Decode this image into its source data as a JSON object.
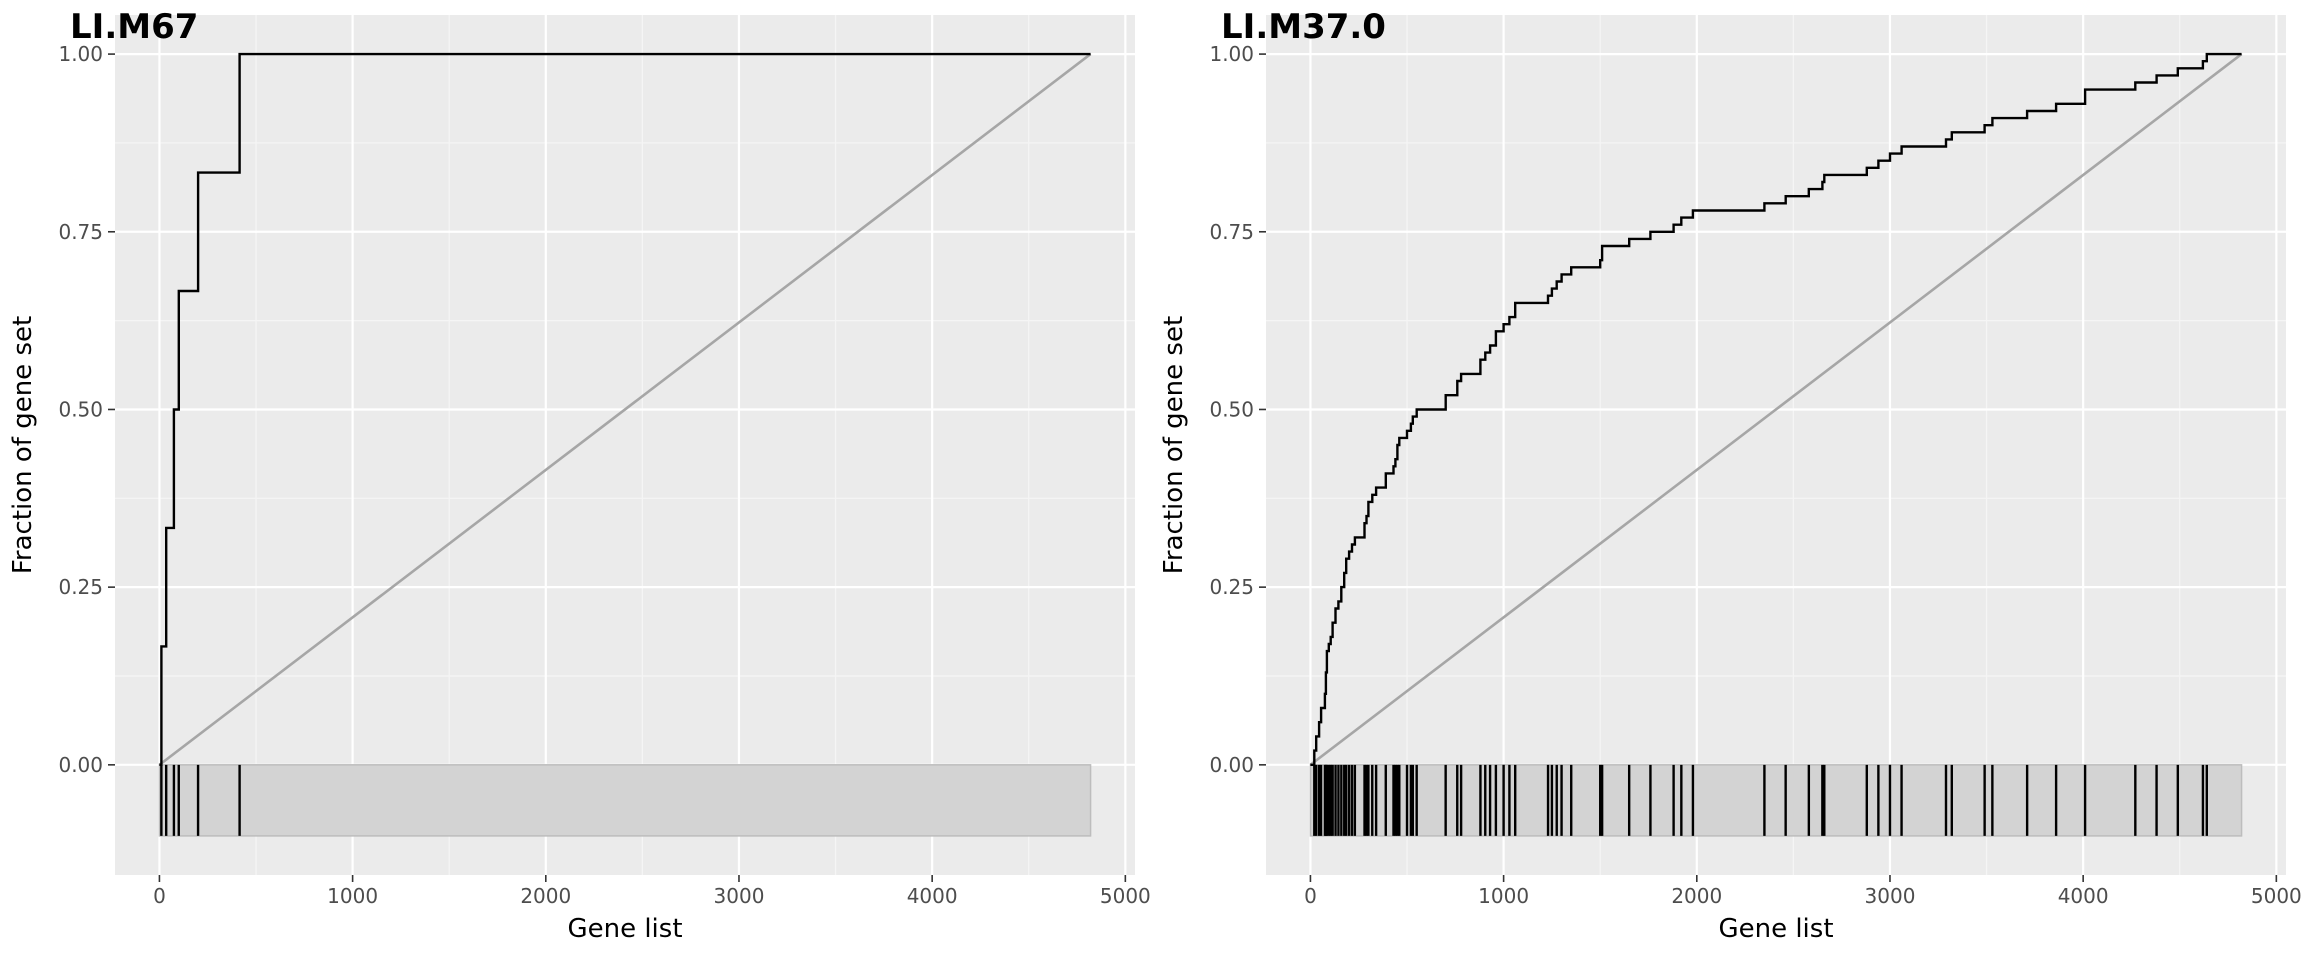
{
  "chart_data": [
    {
      "type": "line",
      "title": "LI.M67",
      "xlabel": "Gene list",
      "ylabel": "Fraction of gene set",
      "xlim": [
        -230,
        5050
      ],
      "ylim": [
        -0.155,
        1.055
      ],
      "x_ticks": [
        0,
        1000,
        2000,
        3000,
        4000,
        5000
      ],
      "x_tick_labels": [
        "0",
        "1000",
        "2000",
        "3000",
        "4000",
        "5000"
      ],
      "y_ticks": [
        0,
        0.25,
        0.5,
        0.75,
        1.0
      ],
      "y_tick_labels": [
        "0.00",
        "0.25",
        "0.50",
        "0.75",
        "1.00"
      ],
      "grid": true,
      "series": [
        {
          "values": [
            [
              0,
              0
            ],
            [
              10,
              0.1667
            ],
            [
              35,
              0.3333
            ],
            [
              75,
              0.5
            ],
            [
              100,
              0.6667
            ],
            [
              200,
              0.8333
            ],
            [
              415,
              1.0
            ],
            [
              4820,
              1.0
            ]
          ]
        },
        {
          "values": [
            [
              0,
              0
            ],
            [
              4820,
              1.0
            ]
          ]
        }
      ],
      "barcode": {
        "positions": [
          10,
          35,
          75,
          100,
          200,
          415
        ],
        "range": [
          0,
          4820
        ],
        "band": [
          -0.1,
          0
        ]
      }
    },
    {
      "type": "line",
      "title": "LI.M37.0",
      "xlabel": "Gene list",
      "ylabel": "Fraction of gene set",
      "xlim": [
        -230,
        5050
      ],
      "ylim": [
        -0.155,
        1.055
      ],
      "x_ticks": [
        0,
        1000,
        2000,
        3000,
        4000,
        5000
      ],
      "x_tick_labels": [
        "0",
        "1000",
        "2000",
        "3000",
        "4000",
        "5000"
      ],
      "y_ticks": [
        0,
        0.25,
        0.5,
        0.75,
        1.0
      ],
      "y_tick_labels": [
        "0.00",
        "0.25",
        "0.50",
        "0.75",
        "1.00"
      ],
      "grid": true,
      "series": [
        {
          "values": [
            [
              0,
              0
            ],
            [
              20,
              0.02
            ],
            [
              30,
              0.04
            ],
            [
              45,
              0.06
            ],
            [
              55,
              0.08
            ],
            [
              75,
              0.1
            ],
            [
              80,
              0.13
            ],
            [
              85,
              0.16
            ],
            [
              95,
              0.17
            ],
            [
              105,
              0.18
            ],
            [
              115,
              0.2
            ],
            [
              130,
              0.22
            ],
            [
              145,
              0.23
            ],
            [
              160,
              0.25
            ],
            [
              175,
              0.27
            ],
            [
              185,
              0.29
            ],
            [
              200,
              0.3
            ],
            [
              215,
              0.31
            ],
            [
              230,
              0.32
            ],
            [
              280,
              0.34
            ],
            [
              290,
              0.35
            ],
            [
              300,
              0.37
            ],
            [
              320,
              0.38
            ],
            [
              340,
              0.39
            ],
            [
              390,
              0.41
            ],
            [
              430,
              0.42
            ],
            [
              440,
              0.43
            ],
            [
              450,
              0.45
            ],
            [
              460,
              0.46
            ],
            [
              500,
              0.47
            ],
            [
              520,
              0.48
            ],
            [
              530,
              0.49
            ],
            [
              550,
              0.5
            ],
            [
              700,
              0.52
            ],
            [
              760,
              0.54
            ],
            [
              780,
              0.55
            ],
            [
              880,
              0.57
            ],
            [
              905,
              0.58
            ],
            [
              930,
              0.59
            ],
            [
              960,
              0.61
            ],
            [
              1000,
              0.62
            ],
            [
              1030,
              0.63
            ],
            [
              1060,
              0.65
            ],
            [
              1230,
              0.66
            ],
            [
              1250,
              0.67
            ],
            [
              1275,
              0.68
            ],
            [
              1300,
              0.69
            ],
            [
              1350,
              0.7
            ],
            [
              1500,
              0.71
            ],
            [
              1510,
              0.73
            ],
            [
              1650,
              0.74
            ],
            [
              1760,
              0.75
            ],
            [
              1880,
              0.76
            ],
            [
              1920,
              0.77
            ],
            [
              1980,
              0.78
            ],
            [
              2350,
              0.79
            ],
            [
              2460,
              0.8
            ],
            [
              2580,
              0.81
            ],
            [
              2650,
              0.82
            ],
            [
              2660,
              0.83
            ],
            [
              2880,
              0.84
            ],
            [
              2940,
              0.85
            ],
            [
              3000,
              0.86
            ],
            [
              3060,
              0.87
            ],
            [
              3290,
              0.88
            ],
            [
              3320,
              0.89
            ],
            [
              3490,
              0.9
            ],
            [
              3530,
              0.91
            ],
            [
              3710,
              0.92
            ],
            [
              3860,
              0.93
            ],
            [
              4010,
              0.95
            ],
            [
              4270,
              0.96
            ],
            [
              4380,
              0.97
            ],
            [
              4490,
              0.98
            ],
            [
              4620,
              0.99
            ],
            [
              4640,
              1.0
            ],
            [
              4820,
              1.0
            ]
          ]
        },
        {
          "values": [
            [
              0,
              0
            ],
            [
              4820,
              1.0
            ]
          ]
        }
      ],
      "barcode": {
        "positions": [
          20,
          30,
          45,
          55,
          75,
          80,
          85,
          95,
          105,
          115,
          130,
          145,
          160,
          175,
          185,
          200,
          215,
          230,
          280,
          290,
          300,
          320,
          340,
          390,
          430,
          440,
          450,
          460,
          500,
          520,
          530,
          550,
          700,
          760,
          780,
          880,
          905,
          930,
          960,
          1000,
          1030,
          1060,
          1230,
          1250,
          1275,
          1300,
          1350,
          1500,
          1510,
          1650,
          1760,
          1880,
          1920,
          1980,
          2350,
          2460,
          2580,
          2650,
          2660,
          2880,
          2940,
          3000,
          3060,
          3290,
          3320,
          3490,
          3530,
          3710,
          3860,
          4010,
          4270,
          4380,
          4490,
          4620,
          4640
        ],
        "range": [
          0,
          4820
        ],
        "band": [
          -0.1,
          0
        ]
      }
    }
  ],
  "colors": {
    "panel": "#ebebeb",
    "grid_major": "#ffffff",
    "grid_minor": "#f5f5f5",
    "step_line": "#000000",
    "diagonal": "#a6a6a6",
    "barcode_band": "#d3d3d3",
    "tick_label": "#4d4d4d",
    "axis_title": "#000000"
  }
}
